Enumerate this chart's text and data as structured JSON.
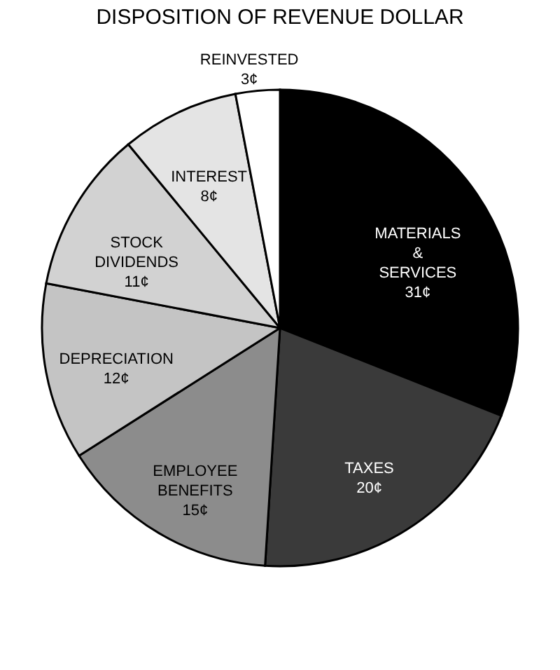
{
  "chart_data": {
    "type": "pie",
    "title": "DISPOSITION OF REVENUE DOLLAR",
    "categories": [
      "MATERIALS & SERVICES",
      "TAXES",
      "EMPLOYEE BENEFITS",
      "DEPRECIATION",
      "STOCK DIVIDENDS",
      "INTEREST",
      "REINVESTED"
    ],
    "values": [
      31,
      20,
      15,
      12,
      11,
      8,
      3
    ],
    "value_labels": [
      "31¢",
      "20¢",
      "15¢",
      "12¢",
      "11¢",
      "8¢",
      "3¢"
    ],
    "colors": [
      "#000000",
      "#3a3a3a",
      "#8c8c8c",
      "#c4c4c4",
      "#d2d2d2",
      "#e4e4e4",
      "#ffffff"
    ]
  }
}
